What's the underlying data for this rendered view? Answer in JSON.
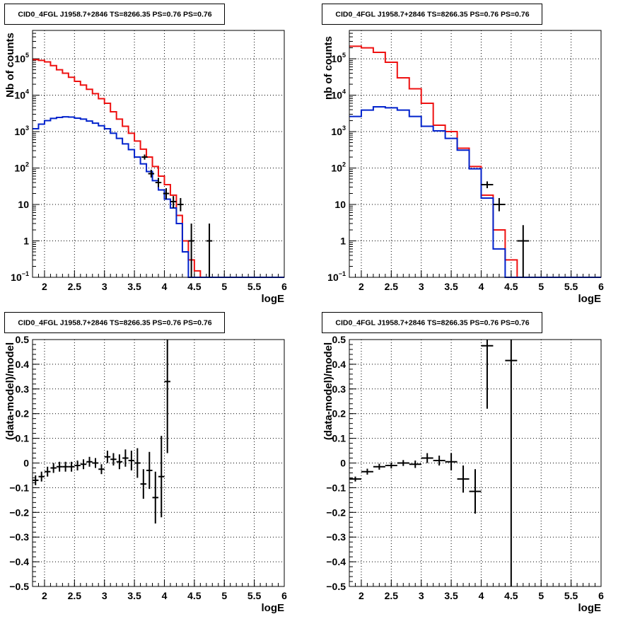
{
  "colors": {
    "data": "#000000",
    "red": "#ee1111",
    "blue": "#0022cc",
    "grid": "#000000"
  },
  "chart_data": [
    {
      "type": "step-histogram",
      "title": "CID0_4FGL J1958.7+2846 TS=8266.35 PS=0.76 PS=0.76",
      "xlabel": "logE",
      "ylabel": "Nb of counts",
      "yscale": "log",
      "xlim": [
        1.8,
        6.0
      ],
      "ylim": [
        0.1,
        600000
      ],
      "xticks": [
        2,
        2.5,
        3,
        3.5,
        4,
        4.5,
        5,
        5.5,
        6
      ],
      "xtick_labels": [
        "2",
        "2.5",
        "3",
        "3.5",
        "4",
        "4.5",
        "5",
        "5.5",
        "6"
      ],
      "yticks": [
        0.1,
        1,
        10,
        100,
        1000,
        10000,
        100000
      ],
      "ytick_labels": [
        {
          "base": "10",
          "exp": "−1"
        },
        {
          "base": "1",
          "exp": ""
        },
        {
          "base": "10",
          "exp": ""
        },
        {
          "base": "10",
          "exp": "2"
        },
        {
          "base": "10",
          "exp": "3"
        },
        {
          "base": "10",
          "exp": "4"
        },
        {
          "base": "10",
          "exp": "5"
        }
      ],
      "grid": true,
      "bin_edges": [
        1.8,
        1.9,
        2.0,
        2.1,
        2.2,
        2.3,
        2.4,
        2.5,
        2.6,
        2.7,
        2.8,
        2.9,
        3.0,
        3.1,
        3.2,
        3.3,
        3.4,
        3.5,
        3.6,
        3.7,
        3.8,
        3.9,
        4.0,
        4.1,
        4.2,
        4.3,
        4.4,
        4.5,
        4.6,
        4.7,
        4.8,
        4.9,
        5.0,
        5.1,
        5.2,
        5.3,
        5.4,
        5.5,
        5.6,
        5.7,
        5.8,
        5.9,
        6.0
      ],
      "series": [
        {
          "color": "red",
          "values": [
            95000,
            90000,
            82000,
            65000,
            50000,
            40000,
            31000,
            24000,
            19000,
            14500,
            11000,
            8000,
            6000,
            3500,
            2200,
            1400,
            900,
            550,
            330,
            200,
            110,
            60,
            35,
            18,
            5,
            1,
            0.3,
            0.15,
            0.1,
            0.1,
            0.1,
            0.1,
            0.1,
            0.1,
            0.1,
            0.1,
            0.1,
            0.1,
            0.1,
            0.1,
            0.1,
            0.1
          ]
        },
        {
          "color": "blue",
          "values": [
            1200,
            1600,
            2000,
            2300,
            2450,
            2550,
            2500,
            2350,
            2200,
            1950,
            1700,
            1450,
            1200,
            900,
            650,
            460,
            320,
            200,
            130,
            80,
            45,
            25,
            14,
            8,
            3,
            0.5,
            0.1,
            0.1,
            0.1,
            0.1,
            0.1,
            0.1,
            0.1,
            0.1,
            0.1,
            0.1,
            0.1,
            0.1,
            0.1,
            0.1,
            0.1,
            0.1
          ]
        }
      ],
      "points": [
        {
          "x": 3.67,
          "y": 200,
          "ylo": 170,
          "yhi": 235
        },
        {
          "x": 3.78,
          "y": 70,
          "ylo": 55,
          "yhi": 90
        },
        {
          "x": 3.9,
          "y": 40,
          "ylo": 30,
          "yhi": 54
        },
        {
          "x": 4.03,
          "y": 20,
          "ylo": 14,
          "yhi": 28
        },
        {
          "x": 4.15,
          "y": 12,
          "ylo": 8,
          "yhi": 17
        },
        {
          "x": 4.27,
          "y": 10,
          "ylo": 6.5,
          "yhi": 15
        },
        {
          "x": 4.45,
          "y": 1,
          "ylo": 0.1,
          "yhi": 3
        },
        {
          "x": 4.75,
          "y": 1,
          "ylo": 0.1,
          "yhi": 3
        }
      ],
      "xerr": 0.05
    },
    {
      "type": "step-histogram",
      "title": "CID0_4FGL J1958.7+2846 TS=8266.35 PS=0.76 PS=0.76",
      "xlabel": "logE",
      "ylabel": "nb of counts",
      "yscale": "log",
      "xlim": [
        1.8,
        6.0
      ],
      "ylim": [
        0.1,
        600000
      ],
      "xticks": [
        2,
        2.5,
        3,
        3.5,
        4,
        4.5,
        5,
        5.5,
        6
      ],
      "xtick_labels": [
        "2",
        "2.5",
        "3",
        "3.5",
        "4",
        "4.5",
        "5",
        "5.5",
        "6"
      ],
      "yticks": [
        0.1,
        1,
        10,
        100,
        1000,
        10000,
        100000
      ],
      "ytick_labels": [
        {
          "base": "10",
          "exp": "−1"
        },
        {
          "base": "1",
          "exp": ""
        },
        {
          "base": "10",
          "exp": ""
        },
        {
          "base": "10",
          "exp": "2"
        },
        {
          "base": "10",
          "exp": "3"
        },
        {
          "base": "10",
          "exp": "4"
        },
        {
          "base": "10",
          "exp": "5"
        }
      ],
      "grid": true,
      "bin_edges": [
        1.8,
        2.0,
        2.2,
        2.4,
        2.6,
        2.8,
        3.0,
        3.2,
        3.4,
        3.6,
        3.8,
        4.0,
        4.2,
        4.4,
        4.6,
        4.8,
        5.0,
        5.2,
        5.4,
        5.6,
        5.8,
        6.0
      ],
      "series": [
        {
          "color": "red",
          "values": [
            220000,
            200000,
            150000,
            80000,
            30000,
            15000,
            6000,
            1500,
            1000,
            350,
            110,
            18,
            2,
            0.3,
            0.1,
            0.1,
            0.1,
            0.1,
            0.1,
            0.1,
            0.1
          ]
        },
        {
          "color": "blue",
          "values": [
            2600,
            3900,
            4800,
            4500,
            3900,
            2600,
            1400,
            1050,
            650,
            310,
            95,
            15,
            0.6,
            0.1,
            0.1,
            0.1,
            0.1,
            0.1,
            0.1,
            0.1,
            0.1
          ]
        }
      ],
      "points": [
        {
          "x": 4.1,
          "y": 35,
          "ylo": 28,
          "yhi": 43
        },
        {
          "x": 4.3,
          "y": 10,
          "ylo": 6.5,
          "yhi": 15
        },
        {
          "x": 4.7,
          "y": 1,
          "ylo": 0.1,
          "yhi": 2.7
        }
      ],
      "xerr": 0.1
    },
    {
      "type": "scatter-errorbars",
      "title": "CID0_4FGL J1958.7+2846 TS=8266.35 PS=0.76 PS=0.76",
      "xlabel": "logE",
      "ylabel": "(data-model)/model",
      "xlim": [
        1.8,
        6.0
      ],
      "ylim": [
        -0.5,
        0.5
      ],
      "xticks": [
        2,
        2.5,
        3,
        3.5,
        4,
        4.5,
        5,
        5.5,
        6
      ],
      "xtick_labels": [
        "2",
        "2.5",
        "3",
        "3.5",
        "4",
        "4.5",
        "5",
        "5.5",
        "6"
      ],
      "yticks": [
        -0.5,
        -0.4,
        -0.3,
        -0.2,
        -0.1,
        0,
        0.1,
        0.2,
        0.3,
        0.4,
        0.5
      ],
      "ytick_labels": [
        "−0.5",
        "−0.4",
        "−0.3",
        "−0.2",
        "−0.1",
        "0",
        "0.1",
        "0.2",
        "0.3",
        "0.4",
        "0.5"
      ],
      "grid": true,
      "xerr": 0.05,
      "points": [
        {
          "x": 1.85,
          "y": -0.07,
          "e": 0.02
        },
        {
          "x": 1.95,
          "y": -0.055,
          "e": 0.02
        },
        {
          "x": 2.05,
          "y": -0.035,
          "e": 0.02
        },
        {
          "x": 2.15,
          "y": -0.02,
          "e": 0.02
        },
        {
          "x": 2.25,
          "y": -0.015,
          "e": 0.02
        },
        {
          "x": 2.35,
          "y": -0.015,
          "e": 0.02
        },
        {
          "x": 2.45,
          "y": -0.015,
          "e": 0.02
        },
        {
          "x": 2.55,
          "y": -0.01,
          "e": 0.02
        },
        {
          "x": 2.65,
          "y": -0.005,
          "e": 0.02
        },
        {
          "x": 2.75,
          "y": 0.005,
          "e": 0.02
        },
        {
          "x": 2.85,
          "y": 0.0,
          "e": 0.02
        },
        {
          "x": 2.95,
          "y": -0.025,
          "e": 0.02
        },
        {
          "x": 3.05,
          "y": 0.025,
          "e": 0.025
        },
        {
          "x": 3.15,
          "y": 0.015,
          "e": 0.025
        },
        {
          "x": 3.25,
          "y": 0.005,
          "e": 0.03
        },
        {
          "x": 3.35,
          "y": 0.02,
          "e": 0.035
        },
        {
          "x": 3.45,
          "y": 0.01,
          "e": 0.04
        },
        {
          "x": 3.55,
          "y": 0.0,
          "e": 0.06
        },
        {
          "x": 3.65,
          "y": -0.085,
          "e": 0.06
        },
        {
          "x": 3.75,
          "y": -0.03,
          "e": 0.075
        },
        {
          "x": 3.85,
          "y": -0.14,
          "e": 0.105
        },
        {
          "x": 3.95,
          "y": -0.055,
          "e": 0.165
        },
        {
          "x": 4.05,
          "y": 0.33,
          "e": 0.29
        }
      ]
    },
    {
      "type": "scatter-errorbars",
      "title": "CID0_4FGL J1958.7+2846 TS=8266.35 PS=0.76 PS=0.76",
      "xlabel": "logE",
      "ylabel": "(data-model)/model",
      "xlim": [
        1.8,
        6.0
      ],
      "ylim": [
        -0.5,
        0.5
      ],
      "xticks": [
        2,
        2.5,
        3,
        3.5,
        4,
        4.5,
        5,
        5.5,
        6
      ],
      "xtick_labels": [
        "2",
        "2.5",
        "3",
        "3.5",
        "4",
        "4.5",
        "5",
        "5.5",
        "6"
      ],
      "yticks": [
        -0.5,
        -0.4,
        -0.3,
        -0.2,
        -0.1,
        0,
        0.1,
        0.2,
        0.3,
        0.4,
        0.5
      ],
      "ytick_labels": [
        "−0.5",
        "−0.4",
        "−0.3",
        "−0.2",
        "−0.1",
        "0",
        "0.1",
        "0.2",
        "0.3",
        "0.4",
        "0.5"
      ],
      "grid": true,
      "xerr": 0.1,
      "points": [
        {
          "x": 1.9,
          "y": -0.065,
          "e": 0.01
        },
        {
          "x": 2.1,
          "y": -0.035,
          "e": 0.012
        },
        {
          "x": 2.3,
          "y": -0.015,
          "e": 0.012
        },
        {
          "x": 2.5,
          "y": -0.01,
          "e": 0.012
        },
        {
          "x": 2.7,
          "y": 0.0,
          "e": 0.012
        },
        {
          "x": 2.9,
          "y": -0.005,
          "e": 0.015
        },
        {
          "x": 3.1,
          "y": 0.02,
          "e": 0.02
        },
        {
          "x": 3.3,
          "y": 0.01,
          "e": 0.02
        },
        {
          "x": 3.5,
          "y": 0.005,
          "e": 0.035
        },
        {
          "x": 3.7,
          "y": -0.065,
          "e": 0.055
        },
        {
          "x": 3.9,
          "y": -0.115,
          "e": 0.09
        },
        {
          "x": 4.1,
          "y": 0.475,
          "e": 0.255
        },
        {
          "x": 4.5,
          "y": 0.415,
          "e": 1.2
        }
      ]
    }
  ]
}
